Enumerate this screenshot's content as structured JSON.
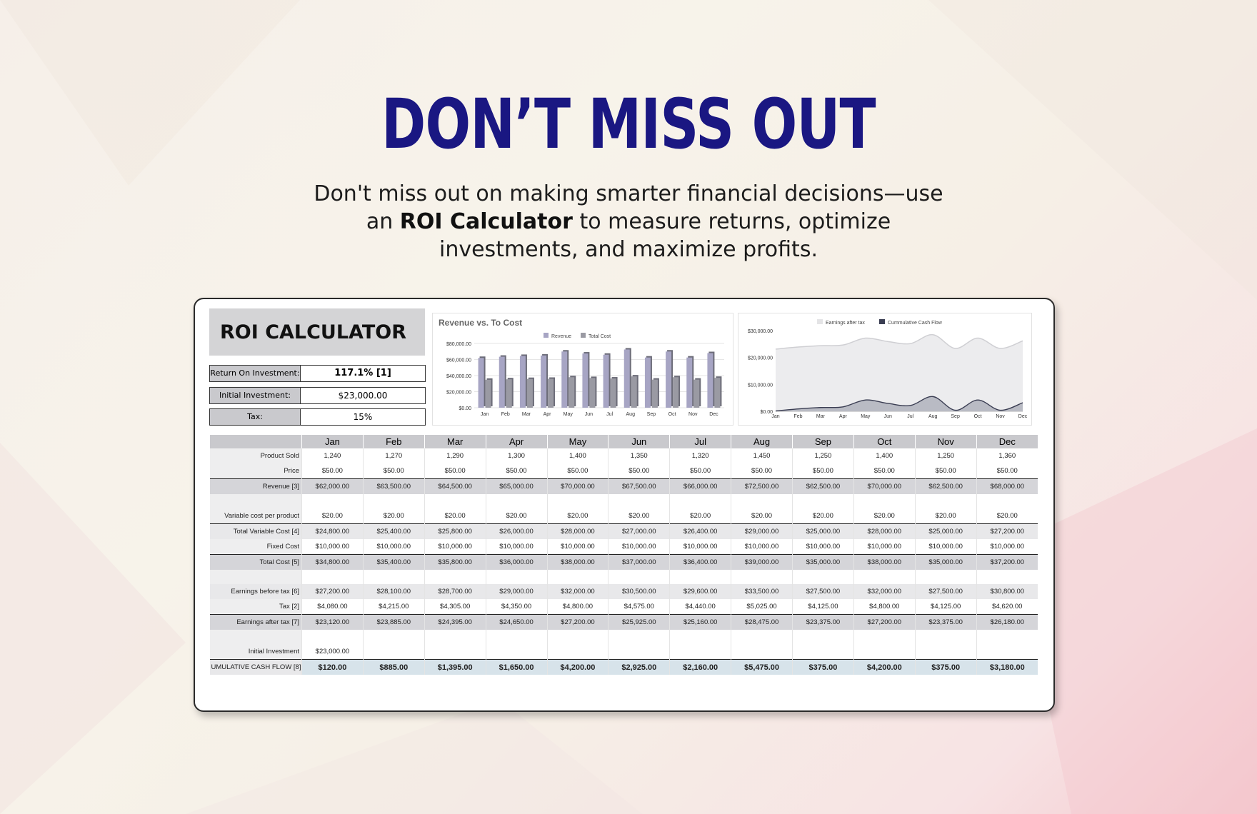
{
  "headline": "DON’T MISS OUT",
  "subtitle": {
    "part1": "Don't miss out on making smarter financial decisions—use an ",
    "bold": "ROI Calculator",
    "part2": " to measure returns, optimize investments, and maximize profits."
  },
  "calculator": {
    "title": "ROI CALCULATOR",
    "summary": [
      {
        "label": "Return On Investment:",
        "value": "117.1% [1]"
      },
      {
        "label": "Initial Investment:",
        "value": "$23,000.00"
      },
      {
        "label": "Tax:",
        "value": "15%"
      }
    ],
    "months": [
      "Jan",
      "Feb",
      "Mar",
      "Apr",
      "May",
      "Jun",
      "Jul",
      "Aug",
      "Sep",
      "Oct",
      "Nov",
      "Dec"
    ],
    "rows": {
      "product_sold": {
        "label": "Product Sold",
        "values": [
          "1,240",
          "1,270",
          "1,290",
          "1,300",
          "1,400",
          "1,350",
          "1,320",
          "1,450",
          "1,250",
          "1,400",
          "1,250",
          "1,360"
        ]
      },
      "price": {
        "label": "Price",
        "values": [
          "$50.00",
          "$50.00",
          "$50.00",
          "$50.00",
          "$50.00",
          "$50.00",
          "$50.00",
          "$50.00",
          "$50.00",
          "$50.00",
          "$50.00",
          "$50.00"
        ]
      },
      "revenue": {
        "label": "Revenue [3]",
        "values": [
          "$62,000.00",
          "$63,500.00",
          "$64,500.00",
          "$65,000.00",
          "$70,000.00",
          "$67,500.00",
          "$66,000.00",
          "$72,500.00",
          "$62,500.00",
          "$70,000.00",
          "$62,500.00",
          "$68,000.00"
        ]
      },
      "variable_cost_per_product": {
        "label": "Variable cost per product",
        "values": [
          "$20.00",
          "$20.00",
          "$20.00",
          "$20.00",
          "$20.00",
          "$20.00",
          "$20.00",
          "$20.00",
          "$20.00",
          "$20.00",
          "$20.00",
          "$20.00"
        ]
      },
      "total_variable_cost": {
        "label": "Total Variable Cost [4]",
        "values": [
          "$24,800.00",
          "$25,400.00",
          "$25,800.00",
          "$26,000.00",
          "$28,000.00",
          "$27,000.00",
          "$26,400.00",
          "$29,000.00",
          "$25,000.00",
          "$28,000.00",
          "$25,000.00",
          "$27,200.00"
        ]
      },
      "fixed_cost": {
        "label": "Fixed Cost",
        "values": [
          "$10,000.00",
          "$10,000.00",
          "$10,000.00",
          "$10,000.00",
          "$10,000.00",
          "$10,000.00",
          "$10,000.00",
          "$10,000.00",
          "$10,000.00",
          "$10,000.00",
          "$10,000.00",
          "$10,000.00"
        ]
      },
      "total_cost": {
        "label": "Total Cost [5]",
        "values": [
          "$34,800.00",
          "$35,400.00",
          "$35,800.00",
          "$36,000.00",
          "$38,000.00",
          "$37,000.00",
          "$36,400.00",
          "$39,000.00",
          "$35,000.00",
          "$38,000.00",
          "$35,000.00",
          "$37,200.00"
        ]
      },
      "earnings_before_tax": {
        "label": "Earnings before tax [6]",
        "values": [
          "$27,200.00",
          "$28,100.00",
          "$28,700.00",
          "$29,000.00",
          "$32,000.00",
          "$30,500.00",
          "$29,600.00",
          "$33,500.00",
          "$27,500.00",
          "$32,000.00",
          "$27,500.00",
          "$30,800.00"
        ]
      },
      "tax": {
        "label": "Tax [2]",
        "values": [
          "$4,080.00",
          "$4,215.00",
          "$4,305.00",
          "$4,350.00",
          "$4,800.00",
          "$4,575.00",
          "$4,440.00",
          "$5,025.00",
          "$4,125.00",
          "$4,800.00",
          "$4,125.00",
          "$4,620.00"
        ]
      },
      "earnings_after_tax": {
        "label": "Earnings after tax [7]",
        "values": [
          "$23,120.00",
          "$23,885.00",
          "$24,395.00",
          "$24,650.00",
          "$27,200.00",
          "$25,925.00",
          "$25,160.00",
          "$28,475.00",
          "$23,375.00",
          "$27,200.00",
          "$23,375.00",
          "$26,180.00"
        ]
      },
      "initial_investment": {
        "label": "Initial Investment",
        "values": [
          "$23,000.00",
          "",
          "",
          "",
          "",
          "",
          "",
          "",
          "",
          "",
          "",
          ""
        ]
      },
      "cumulative_cash_flow": {
        "label": "UMULATIVE CASH FLOW [8]",
        "values": [
          "$120.00",
          "$885.00",
          "$1,395.00",
          "$1,650.00",
          "$4,200.00",
          "$2,925.00",
          "$2,160.00",
          "$5,475.00",
          "$375.00",
          "$4,200.00",
          "$375.00",
          "$3,180.00"
        ]
      }
    }
  },
  "chart_data": [
    {
      "type": "bar",
      "title": "Revenue vs. To Cost",
      "categories": [
        "Jan",
        "Feb",
        "Mar",
        "Apr",
        "May",
        "Jun",
        "Jul",
        "Aug",
        "Sep",
        "Oct",
        "Nov",
        "Dec"
      ],
      "series": [
        {
          "name": "Revenue",
          "values": [
            62000,
            63500,
            64500,
            65000,
            70000,
            67500,
            66000,
            72500,
            62500,
            70000,
            62500,
            68000
          ],
          "color": "#a7a5c4"
        },
        {
          "name": "Total Cost",
          "values": [
            34800,
            35400,
            35800,
            36000,
            38000,
            37000,
            36400,
            39000,
            35000,
            38000,
            35000,
            37200
          ],
          "color": "#9a9aa3"
        }
      ],
      "yticks": [
        "$0.00",
        "$20,000.00",
        "$40,000.00",
        "$60,000.00",
        "$80,000.00"
      ],
      "ylim": [
        0,
        80000
      ],
      "legend": "top"
    },
    {
      "type": "area",
      "categories": [
        "Jan",
        "Feb",
        "Mar",
        "Apr",
        "May",
        "Jun",
        "Jul",
        "Aug",
        "Sep",
        "Oct",
        "Nov",
        "Dec"
      ],
      "series": [
        {
          "name": "Earnings after tax",
          "values": [
            23120,
            23885,
            24395,
            24650,
            27200,
            25925,
            25160,
            28475,
            23375,
            27200,
            23375,
            26180
          ],
          "color": "#e4e4e6"
        },
        {
          "name": "Cummulative Cash Flow",
          "values": [
            120,
            885,
            1395,
            1650,
            4200,
            2925,
            2160,
            5475,
            375,
            4200,
            375,
            3180
          ],
          "color": "#3a3d52"
        }
      ],
      "yticks": [
        "$0.00",
        "$10,000.00",
        "$20,000.00",
        "$30,000.00"
      ],
      "ylim": [
        0,
        30000
      ],
      "legend": "top"
    }
  ]
}
